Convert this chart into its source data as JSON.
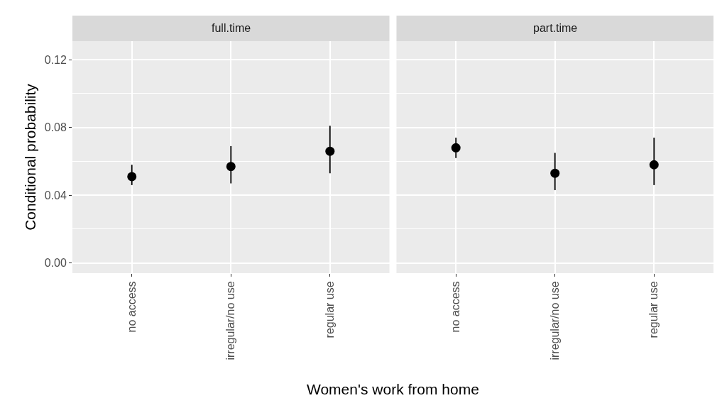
{
  "chart_data": [
    {
      "type": "scatter",
      "title": "full.time",
      "xlabel": "Women's work from home",
      "ylabel": "Conditional probability",
      "categories": [
        "no access",
        "irregular/no use",
        "regular use"
      ],
      "values": [
        0.051,
        0.057,
        0.066
      ],
      "errors": [
        [
          0.046,
          0.058
        ],
        [
          0.047,
          0.069
        ],
        [
          0.053,
          0.081
        ]
      ],
      "color": "#000000",
      "marker": "circle",
      "ylim": [
        -0.006,
        0.131
      ],
      "yticks": [
        {
          "value": 0,
          "label": "0.00"
        },
        0.04,
        0.08,
        0.12
      ],
      "grid": true
    },
    {
      "type": "scatter",
      "title": "part.time",
      "categories": [
        "no access",
        "irregular/no use",
        "regular use"
      ],
      "values": [
        0.068,
        0.053,
        0.058
      ],
      "errors": [
        [
          0.062,
          0.074
        ],
        [
          0.043,
          0.065
        ],
        [
          0.046,
          0.074
        ]
      ],
      "color": "#000000",
      "marker": "circle",
      "ylim": [
        -0.006,
        0.131
      ],
      "yticks": [
        0,
        0.04,
        0.08,
        0.12
      ],
      "grid": true,
      "tick_labels": "x"
    }
  ]
}
